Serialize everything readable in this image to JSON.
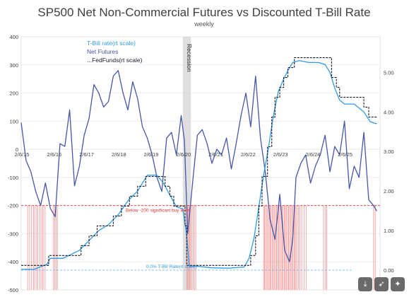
{
  "chart_data": {
    "type": "line",
    "title": "SP500 Net Non-Commercial Futures vs Discounted T-Bill Rate",
    "subtitle": "weekly",
    "x_ticks": [
      "2/6/15",
      "2/6/16",
      "2/6/17",
      "2/6/18",
      "2/6/19",
      "2/6/20",
      "2/6/21",
      "2/6/22",
      "2/6/23",
      "2/6/24",
      "2/6/25"
    ],
    "x_range": [
      2015.1,
      2026.2
    ],
    "ylim_left": [
      -500,
      400
    ],
    "yticks_left": [
      400,
      300,
      200,
      100,
      0,
      -100,
      -200,
      -300,
      -400,
      -500
    ],
    "ylim_right": [
      -0.5,
      5.9
    ],
    "yticks_right": [
      5.0,
      4.0,
      3.0,
      2.0,
      1.0,
      0.0
    ],
    "legend": {
      "tbill": "T-Bill rate(rt scale)",
      "net": "Net Futures",
      "fed": "...FedFunds(rt scale)"
    },
    "recession": {
      "label": "Recession",
      "start": 2020.1,
      "end": 2020.35
    },
    "annotations": {
      "buy_level": {
        "y": -200,
        "label": "Below -200 significant buy level"
      },
      "zero_rate": {
        "y": 0.0,
        "label": "0.0% T-Bill Rate(rt scale)"
      }
    },
    "colors": {
      "net": "#4657a8",
      "tbill": "#2e9be0",
      "fed": "#1a1a2e",
      "buy_line": "#e03030",
      "zero_line": "#5ab0e8",
      "signal": "#f4a0a0",
      "recession": "#d4d4d4"
    },
    "series": [
      {
        "name": "Net Futures",
        "axis": "left",
        "x": [
          2015.1,
          2015.25,
          2015.4,
          2015.55,
          2015.7,
          2015.85,
          2016.0,
          2016.15,
          2016.3,
          2016.45,
          2016.6,
          2016.75,
          2016.9,
          2017.05,
          2017.2,
          2017.35,
          2017.5,
          2017.65,
          2017.8,
          2017.95,
          2018.1,
          2018.25,
          2018.4,
          2018.55,
          2018.7,
          2018.85,
          2019.0,
          2019.15,
          2019.3,
          2019.45,
          2019.6,
          2019.75,
          2019.9,
          2020.05,
          2020.15,
          2020.25,
          2020.4,
          2020.55,
          2020.7,
          2020.85,
          2021.0,
          2021.15,
          2021.3,
          2021.45,
          2021.6,
          2021.75,
          2021.9,
          2022.05,
          2022.2,
          2022.35,
          2022.5,
          2022.65,
          2022.8,
          2022.95,
          2023.1,
          2023.25,
          2023.4,
          2023.5,
          2023.6,
          2023.75,
          2023.9,
          2024.05,
          2024.2,
          2024.35,
          2024.5,
          2024.65,
          2024.8,
          2024.95,
          2025.1,
          2025.25,
          2025.4,
          2025.55,
          2025.7,
          2025.85,
          2026.0,
          2026.1
        ],
        "y": [
          95,
          -40,
          -80,
          -150,
          -200,
          -120,
          -210,
          -240,
          20,
          10,
          140,
          -130,
          -60,
          50,
          110,
          230,
          200,
          150,
          170,
          260,
          280,
          200,
          140,
          240,
          180,
          80,
          40,
          -20,
          -100,
          -150,
          40,
          60,
          -20,
          120,
          30,
          -300,
          -120,
          50,
          70,
          20,
          -50,
          0,
          -20,
          40,
          -70,
          20,
          120,
          200,
          80,
          260,
          40,
          -80,
          -250,
          -320,
          -160,
          -360,
          -400,
          -320,
          -100,
          -50,
          -20,
          -120,
          -60,
          -20,
          50,
          -80,
          10,
          -20,
          100,
          -140,
          -60,
          -100,
          60,
          -180,
          -200,
          -220
        ]
      },
      {
        "name": "T-Bill rate(rt scale)",
        "axis": "right",
        "x": [
          2015.1,
          2015.5,
          2015.9,
          2016.0,
          2016.4,
          2016.9,
          2017.2,
          2017.5,
          2017.8,
          2018.1,
          2018.4,
          2018.7,
          2019.0,
          2019.3,
          2019.5,
          2019.7,
          2019.9,
          2020.1,
          2020.2,
          2020.3,
          2020.5,
          2021.0,
          2021.5,
          2022.0,
          2022.15,
          2022.3,
          2022.45,
          2022.6,
          2022.75,
          2022.9,
          2023.05,
          2023.2,
          2023.35,
          2023.5,
          2023.7,
          2024.0,
          2024.3,
          2024.5,
          2024.65,
          2024.8,
          2024.95,
          2025.1,
          2025.4,
          2025.7,
          2025.9,
          2026.1
        ],
        "y": [
          0.02,
          0.02,
          0.15,
          0.3,
          0.3,
          0.5,
          0.75,
          1.0,
          1.15,
          1.4,
          1.75,
          2.0,
          2.4,
          2.4,
          2.2,
          1.9,
          1.6,
          1.55,
          1.0,
          0.1,
          0.1,
          0.06,
          0.05,
          0.08,
          0.3,
          0.8,
          1.6,
          2.4,
          3.1,
          3.9,
          4.5,
          4.8,
          5.05,
          5.25,
          5.3,
          5.25,
          5.25,
          5.2,
          5.0,
          4.6,
          4.3,
          4.2,
          4.2,
          4.0,
          3.75,
          3.7
        ]
      },
      {
        "name": "...FedFunds(rt scale)",
        "axis": "right",
        "x": [
          2015.1,
          2015.95,
          2015.95,
          2016.95,
          2016.95,
          2017.2,
          2017.2,
          2017.45,
          2017.45,
          2017.95,
          2017.95,
          2018.2,
          2018.2,
          2018.45,
          2018.45,
          2018.7,
          2018.7,
          2018.95,
          2018.95,
          2019.55,
          2019.55,
          2019.7,
          2019.7,
          2019.82,
          2019.82,
          2020.17,
          2020.17,
          2020.22,
          2020.22,
          2022.2,
          2022.2,
          2022.35,
          2022.35,
          2022.45,
          2022.45,
          2022.55,
          2022.55,
          2022.72,
          2022.72,
          2022.85,
          2022.85,
          2022.95,
          2022.95,
          2023.1,
          2023.1,
          2023.22,
          2023.22,
          2023.35,
          2023.35,
          2023.55,
          2023.55,
          2024.7,
          2024.7,
          2024.85,
          2024.85,
          2024.95,
          2024.95,
          2025.7,
          2025.7,
          2025.85,
          2025.85,
          2026.1
        ],
        "y": [
          0.12,
          0.12,
          0.37,
          0.37,
          0.62,
          0.62,
          0.87,
          0.87,
          1.12,
          1.12,
          1.37,
          1.37,
          1.62,
          1.62,
          1.87,
          1.87,
          2.12,
          2.12,
          2.37,
          2.37,
          2.12,
          2.12,
          1.87,
          1.87,
          1.62,
          1.62,
          1.12,
          1.12,
          0.12,
          0.12,
          0.37,
          0.37,
          0.87,
          0.87,
          1.62,
          1.62,
          2.37,
          2.37,
          3.12,
          3.12,
          3.87,
          3.87,
          4.37,
          4.37,
          4.62,
          4.62,
          4.87,
          4.87,
          5.12,
          5.12,
          5.37,
          5.37,
          4.87,
          4.87,
          4.62,
          4.62,
          4.37,
          4.37,
          4.12,
          4.12,
          3.87,
          3.87
        ]
      }
    ],
    "signals": [
      2015.3,
      2015.36,
      2015.42,
      2015.48,
      2015.52,
      2015.58,
      2015.62,
      2015.68,
      2015.74,
      2015.78,
      2015.84,
      2016.1,
      2016.14,
      2016.18,
      2016.22,
      2020.22,
      2020.25,
      2020.28,
      2020.31,
      2020.34,
      2020.38,
      2020.42,
      2020.46,
      2020.5,
      2022.6,
      2022.63,
      2022.66,
      2022.7,
      2022.73,
      2022.77,
      2022.8,
      2022.83,
      2022.87,
      2022.9,
      2022.93,
      2022.97,
      2023.0,
      2023.04,
      2023.07,
      2023.1,
      2023.14,
      2023.17,
      2023.2,
      2023.24,
      2023.27,
      2023.3,
      2023.34,
      2023.37,
      2023.4,
      2023.44,
      2023.47,
      2023.5,
      2023.54,
      2023.57,
      2023.6,
      2023.64,
      2023.68,
      2023.72,
      2023.78,
      2023.85,
      2023.92,
      2024.45,
      2024.5,
      2024.55,
      2026.0,
      2026.05
    ]
  },
  "toolbar": {
    "download_icon": "download-icon",
    "share_icon": "share-icon",
    "more_icon": "more-icon"
  }
}
